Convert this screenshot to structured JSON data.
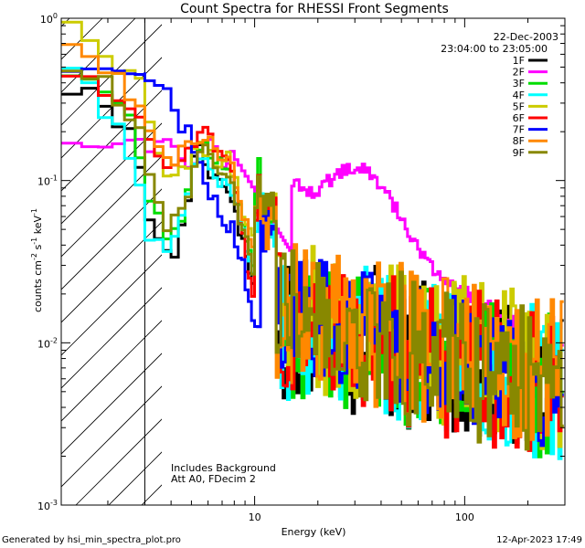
{
  "chart_data": {
    "type": "line",
    "title": "Count Spectra for RHESSI Front Segments",
    "xlabel": "Energy (keV)",
    "ylabel_main": "counts cm",
    "ylabel_exp1": "-2",
    "ylabel_mid": " s",
    "ylabel_exp2": "-1",
    "ylabel_end": " keV",
    "ylabel_exp3": "-1",
    "xscale": "log",
    "yscale": "log",
    "xlim": [
      1.2,
      300
    ],
    "ylim": [
      0.001,
      1
    ],
    "x_ticks": [
      {
        "v": 10,
        "label": "10"
      },
      {
        "v": 100,
        "label": "100"
      }
    ],
    "y_ticks": [
      {
        "v": 0.001,
        "base": "10",
        "exp": "-3"
      },
      {
        "v": 0.01,
        "base": "10",
        "exp": "-2"
      },
      {
        "v": 0.1,
        "base": "10",
        "exp": "-1"
      },
      {
        "v": 1,
        "base": "10",
        "exp": "0"
      }
    ],
    "date": "22-Dec-2003",
    "time_range": "23:04:00 to 23:05:00",
    "attenuator_energy_keV": 3,
    "annotation_lines": [
      "Includes Background",
      "Att A0, FDecim 2"
    ],
    "footer_left": "Generated by hsi_min_spectra_plot.pro",
    "footer_right": "12-Apr-2023 17:49",
    "series": [
      {
        "name": "1F",
        "color": "#000000",
        "base": 0.006,
        "low": [
          0.4,
          0.3,
          0.2,
          0.09,
          0.05,
          0.033,
          0.06,
          0.16,
          0.12,
          0.09,
          0.1,
          0.07,
          0.045,
          0.035,
          0.02,
          0.1
        ]
      },
      {
        "name": "2F",
        "color": "#ff00ff",
        "special": "2F"
      },
      {
        "name": "3F",
        "color": "#00dd00",
        "base": 0.006,
        "low": [
          0.45,
          0.35,
          0.25,
          0.1,
          0.06,
          0.04,
          0.07,
          0.18,
          0.15,
          0.12,
          0.13,
          0.09,
          0.06,
          0.045,
          0.03,
          0.12
        ]
      },
      {
        "name": "4F",
        "color": "#00ffff",
        "base": 0.006,
        "low": [
          0.47,
          0.28,
          0.14,
          0.06,
          0.04,
          0.038,
          0.06,
          0.15,
          0.13,
          0.1,
          0.11,
          0.08,
          0.05,
          0.04,
          0.025,
          0.09
        ]
      },
      {
        "name": "5F",
        "color": "#cccc00",
        "base": 0.007,
        "low": [
          0.85,
          0.55,
          0.5,
          0.3,
          0.15,
          0.1,
          0.12,
          0.17,
          0.16,
          0.13,
          0.14,
          0.12,
          0.07,
          0.06,
          0.04,
          0.1
        ]
      },
      {
        "name": "6F",
        "color": "#ff0000",
        "base": 0.006,
        "low": [
          0.5,
          0.36,
          0.3,
          0.22,
          0.15,
          0.12,
          0.14,
          0.18,
          0.2,
          0.17,
          0.15,
          0.1,
          0.055,
          0.03,
          0.02,
          0.1
        ]
      },
      {
        "name": "7F",
        "color": "#0000ff",
        "base": 0.006,
        "special": "7F"
      },
      {
        "name": "8F",
        "color": "#ff8800",
        "base": 0.007,
        "low": [
          0.65,
          0.5,
          0.35,
          0.28,
          0.2,
          0.13,
          0.15,
          0.2,
          0.19,
          0.14,
          0.14,
          0.11,
          0.065,
          0.05,
          0.035,
          0.1
        ]
      },
      {
        "name": "9F",
        "color": "#888800",
        "base": 0.006,
        "low": [
          0.42,
          0.4,
          0.28,
          0.15,
          0.07,
          0.05,
          0.07,
          0.16,
          0.15,
          0.11,
          0.12,
          0.09,
          0.05,
          0.04,
          0.03,
          0.1
        ]
      }
    ]
  }
}
